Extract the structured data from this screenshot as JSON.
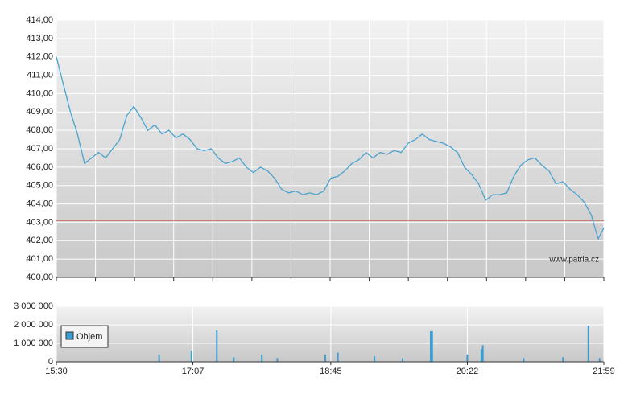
{
  "chart_data": [
    {
      "type": "line",
      "x": [
        "15:30",
        "15:35",
        "15:40",
        "15:45",
        "15:50",
        "15:55",
        "16:00",
        "16:05",
        "16:10",
        "16:15",
        "16:20",
        "16:25",
        "16:30",
        "16:35",
        "16:40",
        "16:45",
        "16:50",
        "16:55",
        "17:00",
        "17:05",
        "17:10",
        "17:15",
        "17:20",
        "17:25",
        "17:30",
        "17:35",
        "17:40",
        "17:45",
        "17:50",
        "17:55",
        "18:00",
        "18:05",
        "18:10",
        "18:15",
        "18:20",
        "18:25",
        "18:30",
        "18:35",
        "18:40",
        "18:45",
        "18:50",
        "18:55",
        "19:00",
        "19:05",
        "19:10",
        "19:15",
        "19:20",
        "19:25",
        "19:30",
        "19:35",
        "19:40",
        "19:45",
        "19:50",
        "19:55",
        "20:00",
        "20:05",
        "20:10",
        "20:15",
        "20:20",
        "20:25",
        "20:30",
        "20:35",
        "20:40",
        "20:45",
        "20:50",
        "20:55",
        "21:00",
        "21:05",
        "21:10",
        "21:15",
        "21:20",
        "21:25",
        "21:30",
        "21:35",
        "21:40",
        "21:45",
        "21:50",
        "21:55",
        "21:59"
      ],
      "values": [
        412.0,
        410.5,
        409.0,
        407.8,
        406.2,
        406.5,
        406.8,
        406.5,
        407.0,
        407.5,
        408.8,
        409.3,
        408.7,
        408.0,
        408.3,
        407.8,
        408.0,
        407.6,
        407.8,
        407.5,
        407.0,
        406.9,
        407.0,
        406.5,
        406.2,
        406.3,
        406.5,
        406.0,
        405.7,
        406.0,
        405.8,
        405.4,
        404.8,
        404.6,
        404.7,
        404.5,
        404.6,
        404.5,
        404.7,
        405.4,
        405.5,
        405.8,
        406.2,
        406.4,
        406.8,
        406.5,
        406.8,
        406.7,
        406.9,
        406.8,
        407.3,
        407.5,
        407.8,
        407.5,
        407.4,
        407.3,
        407.1,
        406.8,
        406.0,
        405.6,
        405.1,
        404.2,
        404.5,
        404.5,
        404.6,
        405.5,
        406.1,
        406.4,
        406.5,
        406.1,
        405.8,
        405.1,
        405.2,
        404.8,
        404.5,
        404.1,
        403.4,
        402.1,
        402.7
      ],
      "color": "#4aa3d0",
      "reference": 403.1,
      "reference_color": "#d07070",
      "xlim": [
        "15:30",
        "21:59"
      ],
      "ylim": [
        400,
        414
      ],
      "yticks": [
        {
          "value": 400,
          "label": "400,00"
        },
        {
          "value": 401,
          "label": "401,00"
        },
        {
          "value": 402,
          "label": "402,00"
        },
        {
          "value": 403,
          "label": "403,00"
        },
        {
          "value": 404,
          "label": "404,00"
        },
        {
          "value": 405,
          "label": "405,00"
        },
        {
          "value": 406,
          "label": "406,00"
        },
        {
          "value": 407,
          "label": "407,00"
        },
        {
          "value": 408,
          "label": "408,00"
        },
        {
          "value": 409,
          "label": "409,00"
        },
        {
          "value": 410,
          "label": "410,00"
        },
        {
          "value": 411,
          "label": "411,00"
        },
        {
          "value": 412,
          "label": "412,00"
        },
        {
          "value": 413,
          "label": "413,00"
        },
        {
          "value": 414,
          "label": "414,00"
        }
      ],
      "watermark": "www.patria.cz",
      "grid": true
    },
    {
      "type": "bar",
      "x": [
        "16:43",
        "17:06",
        "17:24",
        "17:36",
        "17:56",
        "18:07",
        "18:41",
        "18:50",
        "19:16",
        "19:36",
        "19:56",
        "19:57",
        "20:22",
        "20:32",
        "20:33",
        "21:02",
        "21:30",
        "21:48",
        "21:56"
      ],
      "series": [
        {
          "name": "Objem",
          "color": "#3a9ed0",
          "values": [
            400000,
            600000,
            1700000,
            250000,
            400000,
            200000,
            400000,
            500000,
            300000,
            200000,
            1650000,
            1650000,
            400000,
            700000,
            900000,
            200000,
            250000,
            1950000,
            200000
          ]
        }
      ],
      "xlim": [
        "15:30",
        "21:59"
      ],
      "xticks": [
        "15:30",
        "17:07",
        "18:45",
        "20:22",
        "21:59"
      ],
      "ylim": [
        0,
        3000000
      ],
      "yticks": [
        0,
        {
          "value": 1000000,
          "label": "1 000 000"
        },
        {
          "value": 2000000,
          "label": "2 000 000"
        },
        {
          "value": 3000000,
          "label": "3 000 000"
        }
      ],
      "grid": true
    }
  ]
}
